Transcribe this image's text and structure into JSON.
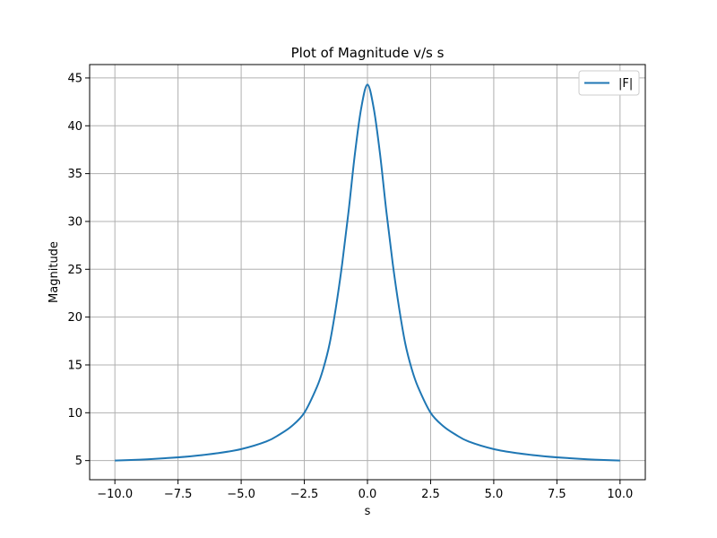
{
  "chart_data": {
    "type": "line",
    "title": "Plot of Magnitude v/s s",
    "xlabel": "s",
    "ylabel": "Magnitude",
    "xlim": [
      -11.0,
      11.0
    ],
    "ylim": [
      3.0,
      46.4
    ],
    "x_ticks": [
      -10.0,
      -7.5,
      -5.0,
      -2.5,
      0.0,
      2.5,
      5.0,
      7.5,
      10.0
    ],
    "x_tick_labels": [
      "−10.0",
      "−7.5",
      "−5.0",
      "−2.5",
      "0.0",
      "2.5",
      "5.0",
      "7.5",
      "10.0"
    ],
    "y_ticks": [
      5,
      10,
      15,
      20,
      25,
      30,
      35,
      40,
      45
    ],
    "y_tick_labels": [
      "5",
      "10",
      "15",
      "20",
      "25",
      "30",
      "35",
      "40",
      "45"
    ],
    "grid": true,
    "legend_position": "top-right",
    "series": [
      {
        "name": "|F|",
        "color": "#1f77b4",
        "x": [
          -10,
          -9,
          -8,
          -7,
          -6,
          -5,
          -4,
          -3.5,
          -3,
          -2.5,
          -2,
          -1.75,
          -1.5,
          -1.25,
          -1,
          -0.75,
          -0.5,
          -0.25,
          0,
          0.25,
          0.5,
          0.75,
          1,
          1.25,
          1.5,
          1.75,
          2,
          2.5,
          3,
          3.5,
          4,
          5,
          6,
          7,
          8,
          9,
          10
        ],
        "y": [
          5.0,
          5.1,
          5.25,
          5.45,
          5.75,
          6.2,
          7.0,
          7.7,
          8.6,
          10.0,
          12.7,
          14.6,
          17.2,
          21.0,
          25.6,
          31.0,
          37.0,
          41.8,
          44.3,
          41.8,
          37.0,
          31.0,
          25.6,
          21.0,
          17.2,
          14.6,
          12.7,
          10.0,
          8.6,
          7.7,
          7.0,
          6.2,
          5.75,
          5.45,
          5.25,
          5.1,
          5.0
        ]
      }
    ]
  }
}
